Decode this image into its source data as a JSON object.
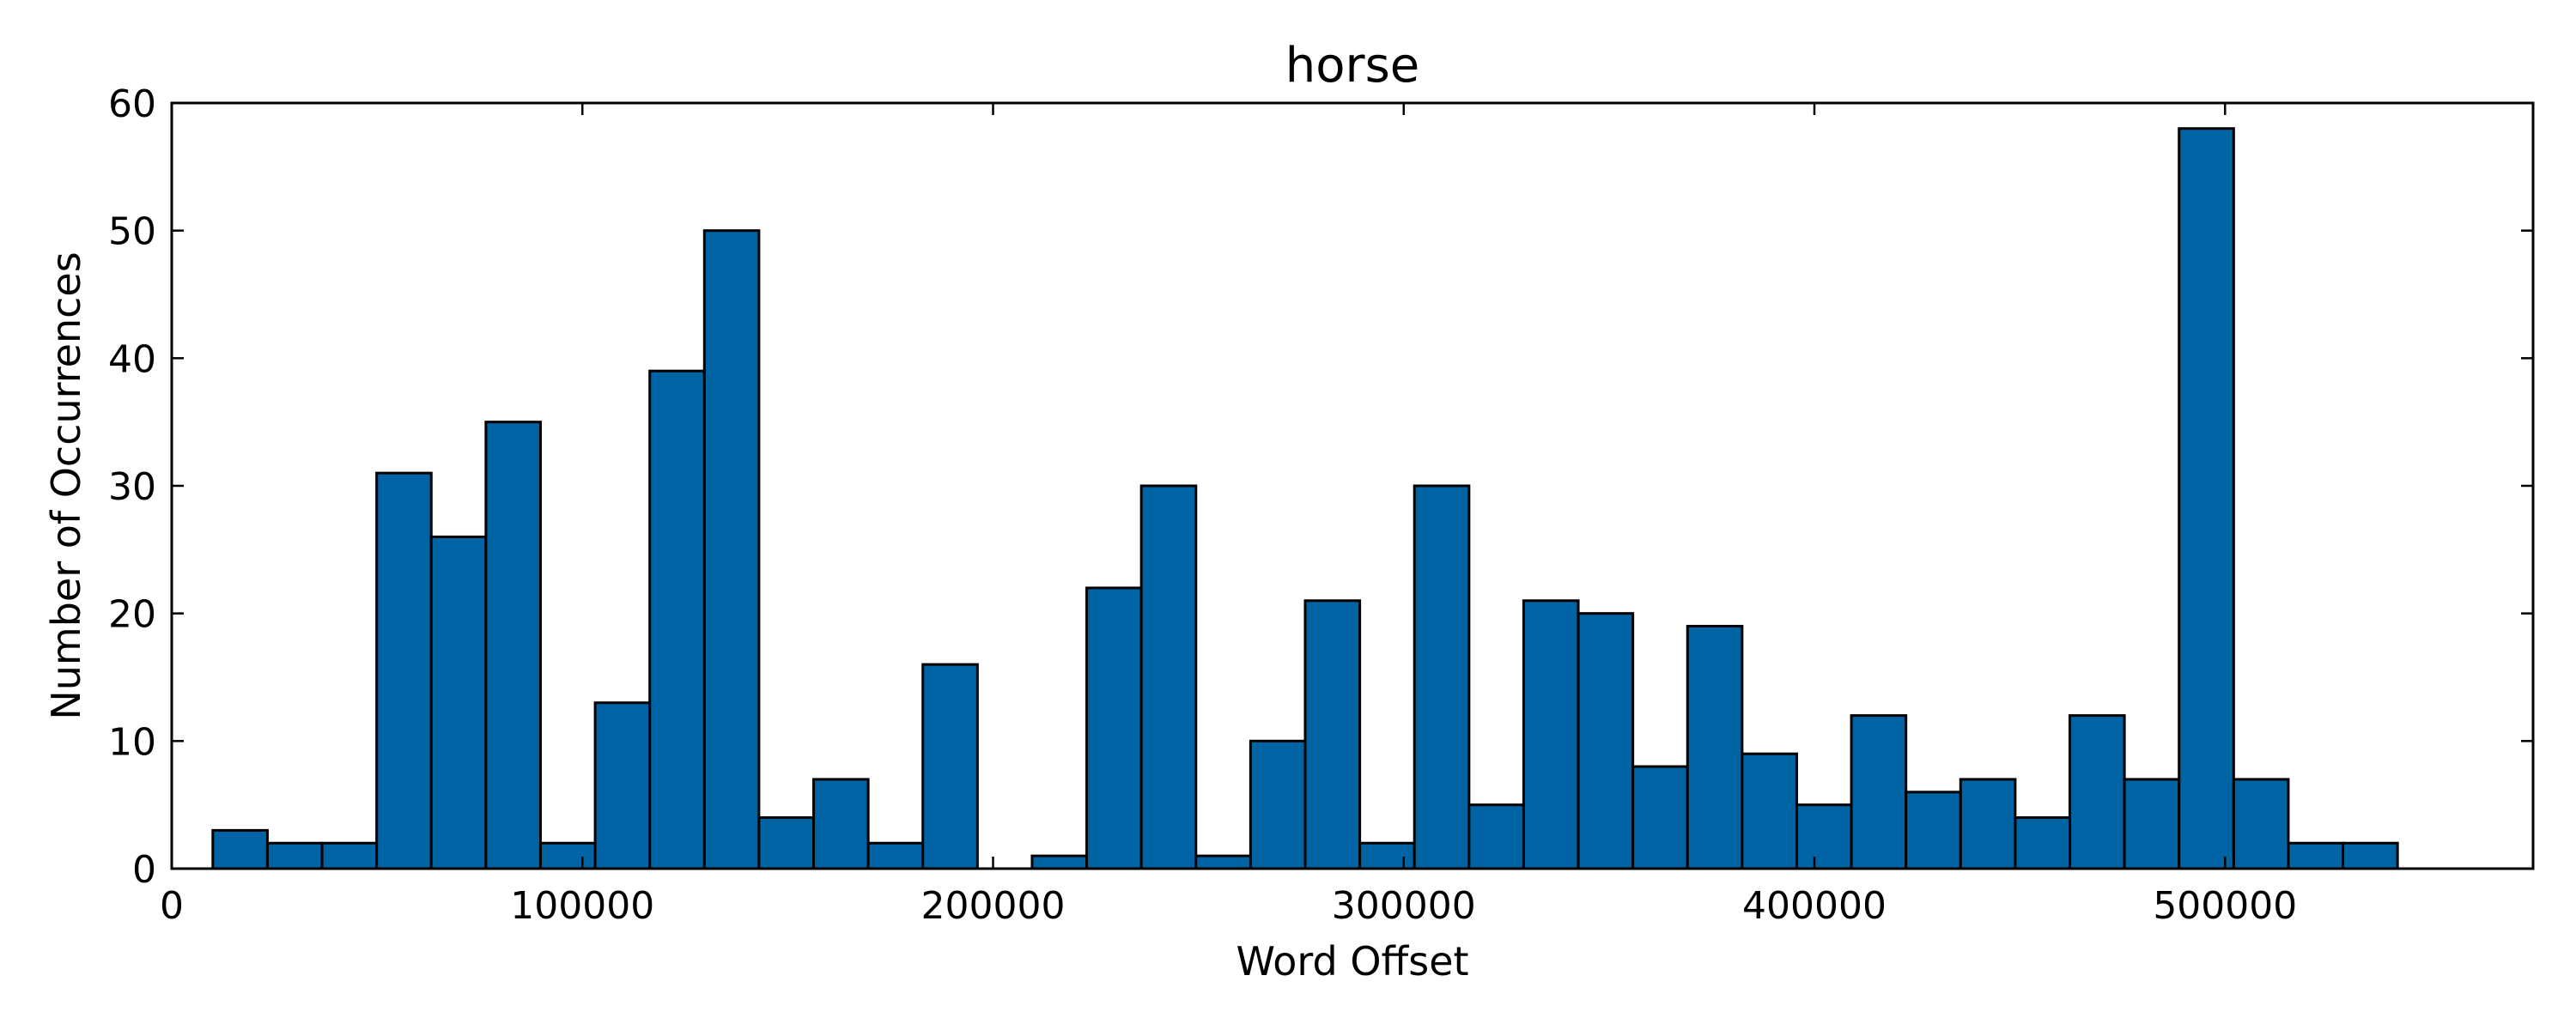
{
  "chart_data": {
    "type": "bar",
    "title": "horse",
    "xlabel": "Word Offset",
    "ylabel": "Number of Occurrences",
    "xlim": [
      0,
      575000
    ],
    "ylim": [
      0,
      60
    ],
    "xticks": [
      {
        "value": 0,
        "label": "0"
      },
      {
        "value": 100000,
        "label": "100000"
      },
      {
        "value": 200000,
        "label": "200000"
      },
      {
        "value": 300000,
        "label": "300000"
      },
      {
        "value": 400000,
        "label": "400000"
      },
      {
        "value": 500000,
        "label": "500000"
      }
    ],
    "yticks": [
      {
        "value": 0,
        "label": "0"
      },
      {
        "value": 10,
        "label": "10"
      },
      {
        "value": 20,
        "label": "20"
      },
      {
        "value": 30,
        "label": "30"
      },
      {
        "value": 40,
        "label": "40"
      },
      {
        "value": 50,
        "label": "50"
      },
      {
        "value": 60,
        "label": "60"
      }
    ],
    "grid": false,
    "bar_color": "#0063a3",
    "bins": [
      {
        "start": 10000,
        "end": 23300,
        "count": 3
      },
      {
        "start": 23300,
        "end": 36600,
        "count": 2
      },
      {
        "start": 36600,
        "end": 49900,
        "count": 2
      },
      {
        "start": 49900,
        "end": 63200,
        "count": 31
      },
      {
        "start": 63200,
        "end": 76500,
        "count": 26
      },
      {
        "start": 76500,
        "end": 89800,
        "count": 35
      },
      {
        "start": 89800,
        "end": 103100,
        "count": 2
      },
      {
        "start": 103100,
        "end": 116400,
        "count": 13
      },
      {
        "start": 116400,
        "end": 129700,
        "count": 39
      },
      {
        "start": 129700,
        "end": 143000,
        "count": 50
      },
      {
        "start": 143000,
        "end": 156300,
        "count": 4
      },
      {
        "start": 156300,
        "end": 169600,
        "count": 7
      },
      {
        "start": 169600,
        "end": 182900,
        "count": 2
      },
      {
        "start": 182900,
        "end": 196200,
        "count": 16
      },
      {
        "start": 196200,
        "end": 209500,
        "count": 0
      },
      {
        "start": 209500,
        "end": 222800,
        "count": 1
      },
      {
        "start": 222800,
        "end": 236100,
        "count": 22
      },
      {
        "start": 236100,
        "end": 249400,
        "count": 30
      },
      {
        "start": 249400,
        "end": 262700,
        "count": 1
      },
      {
        "start": 262700,
        "end": 276000,
        "count": 10
      },
      {
        "start": 276000,
        "end": 289300,
        "count": 21
      },
      {
        "start": 289300,
        "end": 302600,
        "count": 2
      },
      {
        "start": 302600,
        "end": 315900,
        "count": 30
      },
      {
        "start": 315900,
        "end": 329200,
        "count": 5
      },
      {
        "start": 329200,
        "end": 342500,
        "count": 21
      },
      {
        "start": 342500,
        "end": 355800,
        "count": 20
      },
      {
        "start": 355800,
        "end": 369100,
        "count": 8
      },
      {
        "start": 369100,
        "end": 382400,
        "count": 19
      },
      {
        "start": 382400,
        "end": 395700,
        "count": 9
      },
      {
        "start": 395700,
        "end": 409000,
        "count": 5
      },
      {
        "start": 409000,
        "end": 422300,
        "count": 12
      },
      {
        "start": 422300,
        "end": 435600,
        "count": 6
      },
      {
        "start": 435600,
        "end": 448900,
        "count": 7
      },
      {
        "start": 448900,
        "end": 462200,
        "count": 4
      },
      {
        "start": 462200,
        "end": 475500,
        "count": 12
      },
      {
        "start": 475500,
        "end": 488800,
        "count": 7
      },
      {
        "start": 488800,
        "end": 502100,
        "count": 58
      },
      {
        "start": 502100,
        "end": 515400,
        "count": 7
      },
      {
        "start": 515400,
        "end": 528700,
        "count": 2
      },
      {
        "start": 528700,
        "end": 542000,
        "count": 2
      }
    ]
  }
}
